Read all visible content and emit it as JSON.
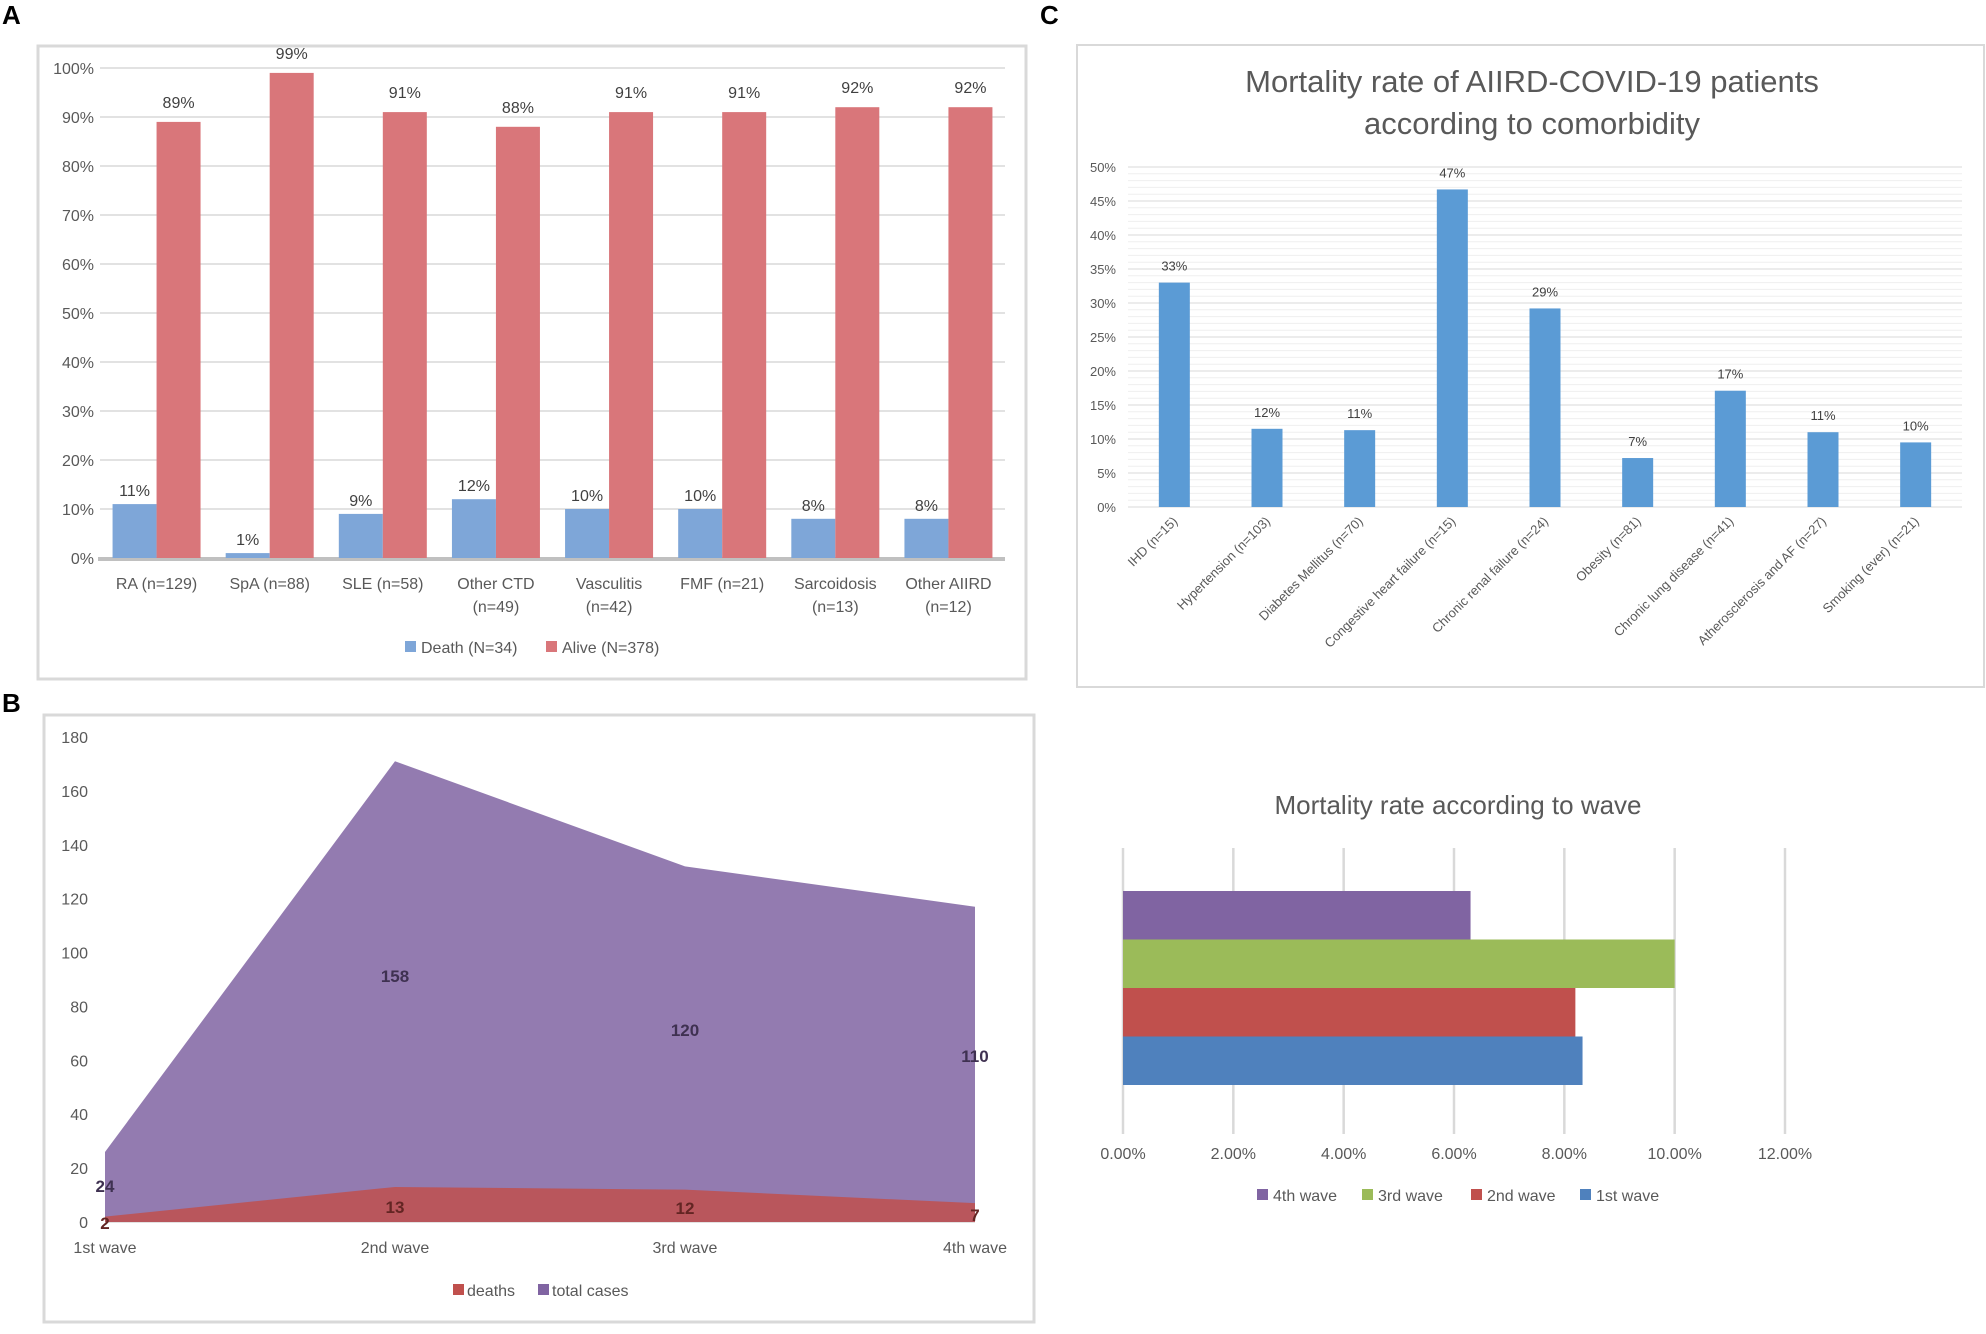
{
  "panel_letters": [
    "A",
    "B",
    "C"
  ],
  "colors": {
    "death": "#7ea6d8",
    "alive": "#d9767a",
    "c_bar": "#5b9bd5",
    "deaths_area": "#c0504d",
    "total_area": "#8064a2",
    "wave1": "#4f81bd",
    "wave2": "#c0504d",
    "wave3": "#9bbb59",
    "wave4": "#8064a2"
  },
  "chart_data": [
    {
      "id": "A",
      "type": "bar",
      "title": "",
      "categories": [
        [
          "RA (n=129)"
        ],
        [
          "SpA (n=88)"
        ],
        [
          "SLE (n=58)"
        ],
        [
          "Other CTD",
          "(n=49)"
        ],
        [
          "Vasculitis",
          "(n=42)"
        ],
        [
          "FMF (n=21)"
        ],
        [
          "Sarcoidosis",
          "(n=13)"
        ],
        [
          "Other AIIRD",
          "(n=12)"
        ]
      ],
      "series": [
        {
          "name": "Death (N=34)",
          "values": [
            11,
            1,
            9,
            12,
            10,
            10,
            8,
            8
          ],
          "labels": [
            "11%",
            "1%",
            "9%",
            "12%",
            "10%",
            "10%",
            "8%",
            "8%"
          ]
        },
        {
          "name": "Alive (N=378)",
          "values": [
            89,
            99,
            91,
            88,
            91,
            91,
            92,
            92
          ],
          "labels": [
            "89%",
            "99%",
            "91%",
            "88%",
            "91%",
            "91%",
            "92%",
            "92%"
          ]
        }
      ],
      "ylim": [
        0,
        100
      ],
      "yticks": [
        "0%",
        "10%",
        "20%",
        "30%",
        "40%",
        "50%",
        "60%",
        "70%",
        "80%",
        "90%",
        "100%"
      ]
    },
    {
      "id": "B",
      "type": "area",
      "categories": [
        "1st wave",
        "2nd wave",
        "3rd wave",
        "4th wave"
      ],
      "series": [
        {
          "name": "deaths",
          "values": [
            2,
            13,
            12,
            7
          ]
        },
        {
          "name": "total cases",
          "values": [
            24,
            158,
            120,
            110
          ]
        }
      ],
      "plot_stacked_totals": [
        26,
        171,
        132,
        117
      ],
      "ylim": [
        0,
        180
      ],
      "yticks": [
        "0",
        "20",
        "40",
        "60",
        "80",
        "100",
        "120",
        "140",
        "160",
        "180"
      ]
    },
    {
      "id": "C1",
      "type": "bar",
      "title": [
        "Mortality rate of AIIRD-COVID-19 patients",
        "according to comorbidity"
      ],
      "categories": [
        "IHD (n=15)",
        "Hypertension (n=103)",
        "Diabetes Mellitus (n=70)",
        "Congestive heart failure (n=15)",
        "Chronic renal failure (n=24)",
        "Obesity (n=81)",
        "Chronic lung disease (n=41)",
        "Atherosclerosis and AF (n=27)",
        "Smoking (ever) (n=21)"
      ],
      "values": [
        33,
        11.5,
        11.3,
        46.7,
        29.2,
        7.2,
        17.1,
        11,
        9.5
      ],
      "labels": [
        "33%",
        "12%",
        "11%",
        "47%",
        "29%",
        "7%",
        "17%",
        "11%",
        "10%"
      ],
      "ylim": [
        0,
        50
      ],
      "yticks": [
        "0%",
        "5%",
        "10%",
        "15%",
        "20%",
        "25%",
        "30%",
        "35%",
        "40%",
        "45%",
        "50%"
      ]
    },
    {
      "id": "C2",
      "type": "bar",
      "orientation": "horizontal",
      "title": "Mortality rate according to wave",
      "series": [
        {
          "name": "1st wave",
          "value": 8.33
        },
        {
          "name": "2nd wave",
          "value": 8.2
        },
        {
          "name": "3rd wave",
          "value": 10.0
        },
        {
          "name": "4th wave",
          "value": 6.3
        }
      ],
      "xlim": [
        0,
        12
      ],
      "xticks": [
        "0.00%",
        "2.00%",
        "4.00%",
        "6.00%",
        "8.00%",
        "10.00%",
        "12.00%"
      ]
    }
  ]
}
